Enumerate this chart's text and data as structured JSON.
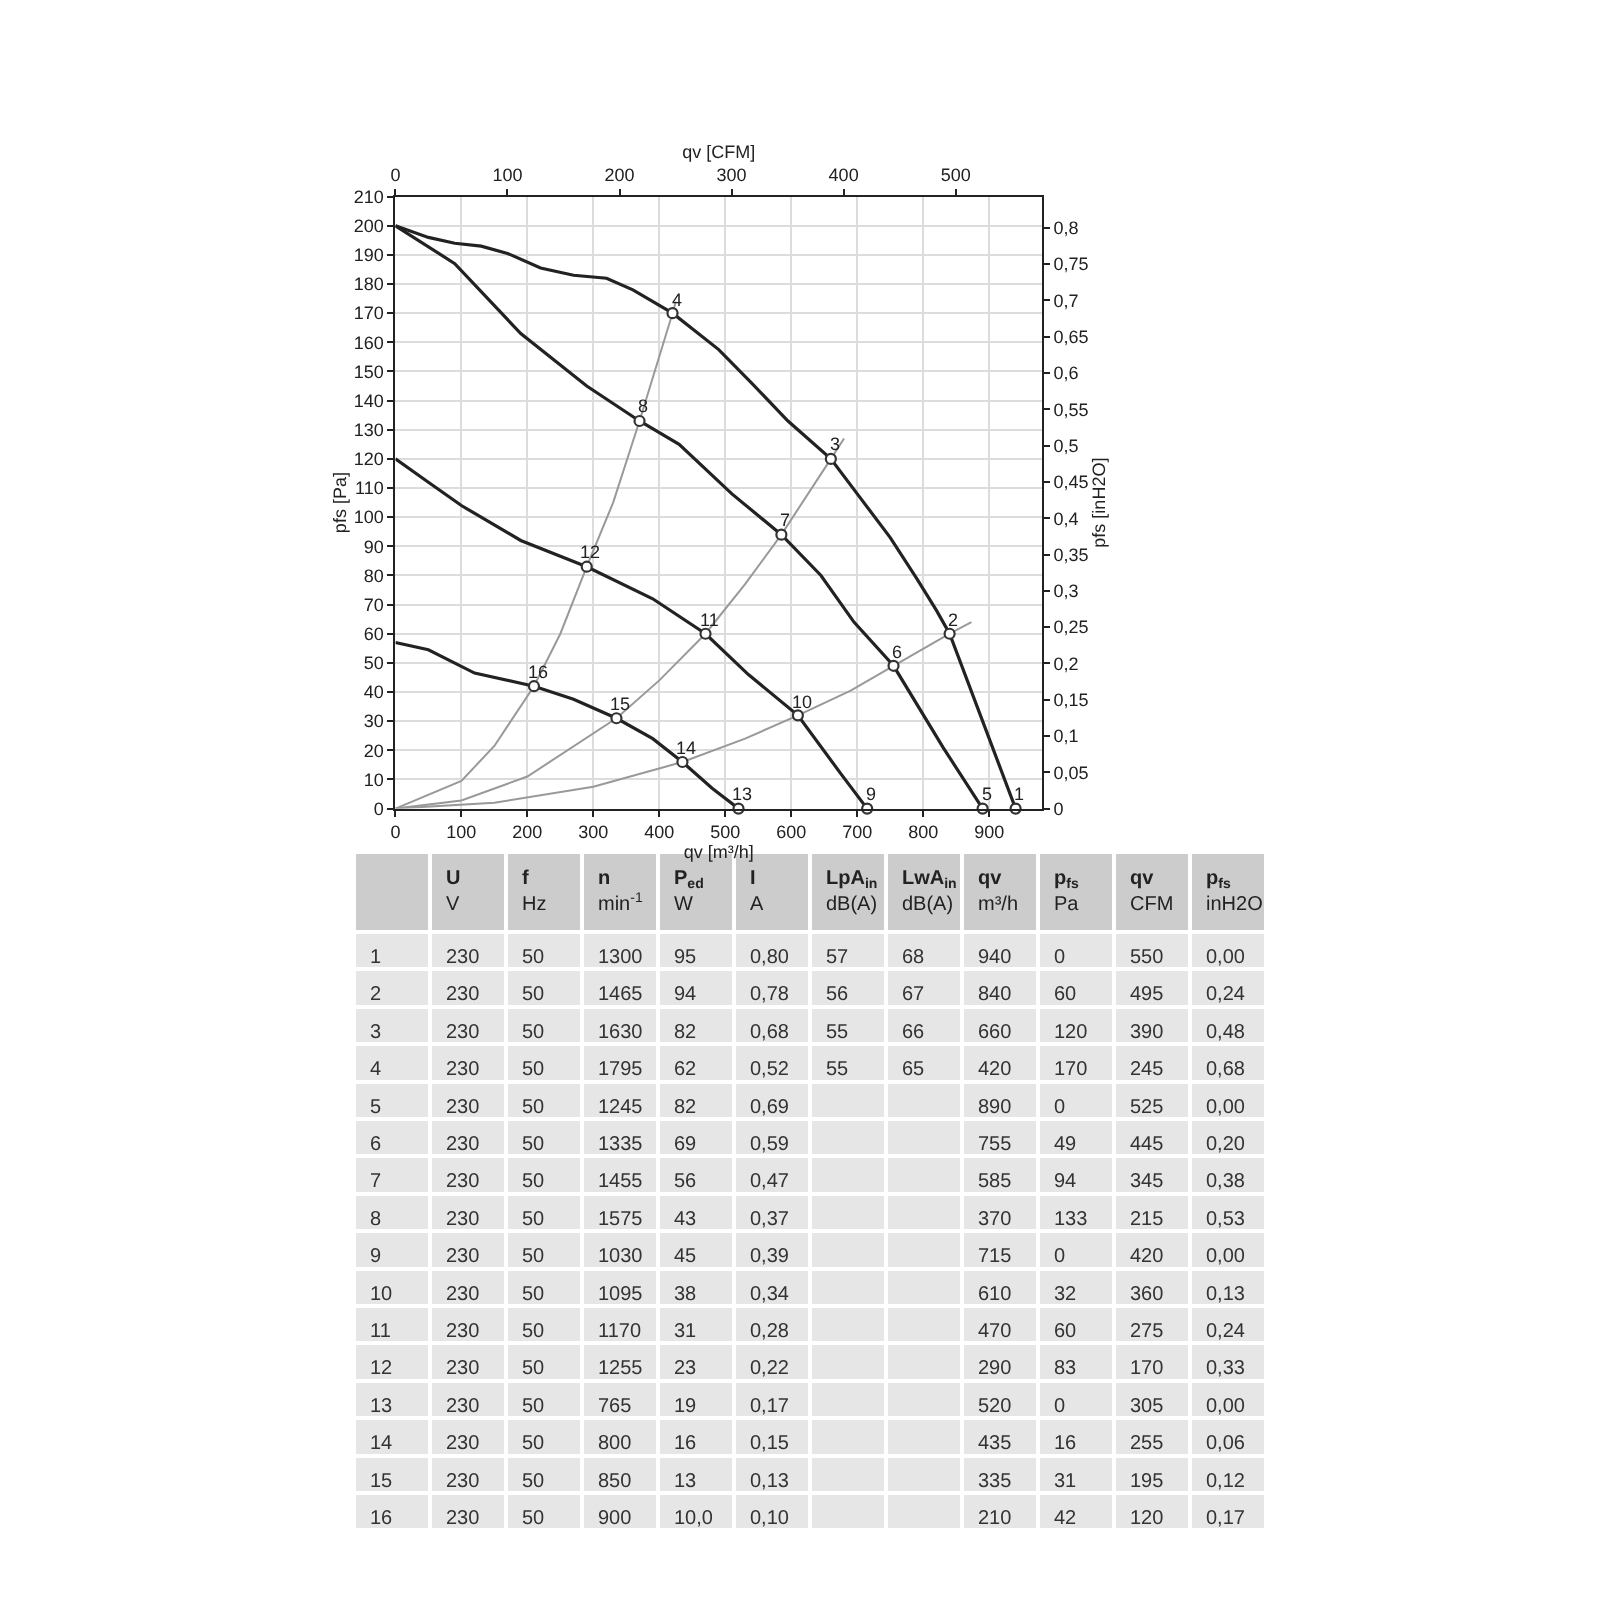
{
  "chart_data": [
    {
      "type": "line",
      "xlabel": "qv [m³/h]",
      "x2label": "qv [CFM]",
      "ylabel": "pfs [Pa]",
      "y2label": "pfs [inH2O]",
      "xlim": [
        0,
        980
      ],
      "xticks": [
        0,
        100,
        200,
        300,
        400,
        500,
        600,
        700,
        800,
        900
      ],
      "x2lim": [
        0,
        577
      ],
      "x2ticks": [
        0,
        100,
        200,
        300,
        400,
        500
      ],
      "ylim": [
        0,
        210
      ],
      "yticks": [
        0,
        10,
        20,
        30,
        40,
        50,
        60,
        70,
        80,
        90,
        100,
        110,
        120,
        130,
        140,
        150,
        160,
        170,
        180,
        190,
        200,
        210
      ],
      "y2lim": [
        0,
        0.843
      ],
      "y2ticks": [
        0,
        {
          "value": 0.05,
          "label": "0,05"
        },
        {
          "value": 0.1,
          "label": "0,1"
        },
        {
          "value": 0.15,
          "label": "0,15"
        },
        {
          "value": 0.2,
          "label": "0,2"
        },
        {
          "value": 0.25,
          "label": "0,25"
        },
        {
          "value": 0.3,
          "label": "0,3"
        },
        {
          "value": 0.35,
          "label": "0,35"
        },
        {
          "value": 0.4,
          "label": "0,4"
        },
        {
          "value": 0.45,
          "label": "0,45"
        },
        {
          "value": 0.5,
          "label": "0,5"
        },
        {
          "value": 0.55,
          "label": "0,55"
        },
        {
          "value": 0.6,
          "label": "0,6"
        },
        {
          "value": 0.65,
          "label": "0,65"
        },
        {
          "value": 0.7,
          "label": "0,7"
        },
        {
          "value": 0.75,
          "label": "0,75"
        },
        {
          "value": 0.8,
          "label": "0,8"
        }
      ],
      "grid": true,
      "series": [
        {
          "type": "line",
          "color": "#999999",
          "x": [
            0,
            100,
            150,
            210,
            250,
            290,
            330,
            370,
            420,
            425
          ],
          "values": [
            0,
            9.5,
            21.5,
            42,
            60,
            83,
            105,
            133,
            170,
            174
          ]
        },
        {
          "type": "line",
          "color": "#999999",
          "x": [
            0,
            100,
            200,
            335,
            400,
            470,
            530,
            585,
            660,
            680
          ],
          "values": [
            0,
            2.8,
            11,
            31,
            44,
            60,
            77,
            94,
            120,
            127
          ]
        },
        {
          "type": "line",
          "color": "#999999",
          "x": [
            0,
            150,
            300,
            435,
            530,
            610,
            690,
            755,
            840,
            873
          ],
          "values": [
            0,
            2,
            7.5,
            16,
            24,
            32,
            40.5,
            49,
            60,
            64
          ]
        },
        {
          "type": "line",
          "color": "#222222",
          "x": [
            0,
            50,
            90,
            130,
            170,
            220,
            270,
            320,
            360,
            420,
            490,
            540,
            595,
            660,
            700,
            750,
            790,
            820,
            840,
            890,
            940
          ],
          "values": [
            200,
            196,
            194,
            193,
            190.5,
            185.5,
            183,
            182,
            178,
            170,
            157.5,
            146,
            133,
            120,
            108,
            93,
            79,
            68,
            60,
            30,
            0
          ]
        },
        {
          "type": "line",
          "color": "#222222",
          "x": [
            0,
            90,
            190,
            290,
            370,
            430,
            510,
            585,
            645,
            695,
            755,
            830,
            890
          ],
          "values": [
            200,
            187,
            163,
            145,
            133,
            125,
            108,
            94,
            80,
            64,
            49,
            21,
            0
          ]
        },
        {
          "type": "line",
          "color": "#222222",
          "x": [
            0,
            50,
            100,
            190,
            290,
            390,
            470,
            535,
            610,
            675,
            715
          ],
          "values": [
            120,
            112,
            104,
            92,
            83,
            72,
            60,
            46,
            32,
            12,
            0
          ]
        },
        {
          "type": "line",
          "color": "#222222",
          "x": [
            0,
            50,
            120,
            210,
            270,
            335,
            390,
            435,
            480,
            520
          ],
          "values": [
            57,
            54.5,
            46.5,
            42,
            37.5,
            31,
            24,
            16,
            7,
            0
          ]
        },
        {
          "type": "scatter",
          "marker": "circle",
          "color": "#333333",
          "x": [
            940,
            840,
            660,
            420,
            890,
            755,
            585,
            370,
            715,
            610,
            470,
            290,
            520,
            435,
            335,
            210
          ],
          "values": [
            0,
            60,
            120,
            170,
            0,
            49,
            94,
            133,
            0,
            32,
            60,
            83,
            0,
            16,
            31,
            42
          ]
        }
      ],
      "annotations": [
        {
          "text": "1",
          "x": 940,
          "y": 0
        },
        {
          "text": "2",
          "x": 840,
          "y": 60
        },
        {
          "text": "3",
          "x": 660,
          "y": 120
        },
        {
          "text": "4",
          "x": 420,
          "y": 170
        },
        {
          "text": "5",
          "x": 890,
          "y": 0
        },
        {
          "text": "6",
          "x": 755,
          "y": 49
        },
        {
          "text": "7",
          "x": 585,
          "y": 94
        },
        {
          "text": "8",
          "x": 370,
          "y": 133
        },
        {
          "text": "9",
          "x": 715,
          "y": 0
        },
        {
          "text": "10",
          "x": 610,
          "y": 32
        },
        {
          "text": "11",
          "x": 470,
          "y": 60
        },
        {
          "text": "12",
          "x": 290,
          "y": 83
        },
        {
          "text": "13",
          "x": 520,
          "y": 0
        },
        {
          "text": "14",
          "x": 435,
          "y": 16
        },
        {
          "text": "15",
          "x": 335,
          "y": 31
        },
        {
          "text": "16",
          "x": 210,
          "y": 42
        }
      ]
    },
    {
      "type": "heatmap",
      "categories": [
        "U\nV",
        "f\nHz",
        "n\nmin$^{-1}$",
        "P$_{ed}$\nW",
        "I\nA",
        "LpA$_{in}$\ndB(A)",
        "LwA$_{in}$\ndB(A)",
        "qv\nm³/h",
        "p$_{fs}$\nPa",
        "qv\nCFM",
        "p$_{fs}$\ninH2O"
      ],
      "y_categories": [
        "1",
        "2",
        "3",
        "4",
        "5",
        "6",
        "7",
        "8",
        "9",
        "10",
        "11",
        "12",
        "13",
        "14",
        "15",
        "16"
      ],
      "cells": [
        [
          230,
          50,
          1300,
          95,
          0.8,
          57,
          68,
          940,
          0,
          550,
          0.0
        ],
        [
          230,
          50,
          1465,
          94,
          0.78,
          56,
          67,
          840,
          60,
          495,
          0.24
        ],
        [
          230,
          50,
          1630,
          82,
          0.68,
          55,
          66,
          660,
          120,
          390,
          0.48
        ],
        [
          230,
          50,
          1795,
          62,
          0.52,
          55,
          65,
          420,
          170,
          245,
          0.68
        ],
        [
          230,
          50,
          1245,
          82,
          0.69,
          null,
          null,
          890,
          0,
          525,
          0.0
        ],
        [
          230,
          50,
          1335,
          69,
          0.59,
          null,
          null,
          755,
          49,
          445,
          0.2
        ],
        [
          230,
          50,
          1455,
          56,
          0.47,
          null,
          null,
          585,
          94,
          345,
          0.38
        ],
        [
          230,
          50,
          1575,
          43,
          0.37,
          null,
          null,
          370,
          133,
          215,
          0.53
        ],
        [
          230,
          50,
          1030,
          45,
          0.39,
          null,
          null,
          715,
          0,
          420,
          0.0
        ],
        [
          230,
          50,
          1095,
          38,
          0.34,
          null,
          null,
          610,
          32,
          360,
          0.13
        ],
        [
          230,
          50,
          1170,
          31,
          0.28,
          null,
          null,
          470,
          60,
          275,
          0.24
        ],
        [
          230,
          50,
          1255,
          23,
          0.22,
          null,
          null,
          290,
          83,
          170,
          0.33
        ],
        [
          230,
          50,
          765,
          19,
          0.17,
          null,
          null,
          520,
          0,
          305,
          0.0
        ],
        [
          230,
          50,
          800,
          16,
          0.15,
          null,
          null,
          435,
          16,
          255,
          0.06
        ],
        [
          230,
          50,
          850,
          13,
          0.13,
          null,
          null,
          335,
          31,
          195,
          0.12
        ],
        [
          230,
          50,
          900,
          10.0,
          0.1,
          null,
          null,
          210,
          42,
          120,
          0.17
        ]
      ],
      "cell_labels": [
        [
          "230",
          "50",
          "1300",
          "95",
          "0,80",
          "57",
          "68",
          "940",
          "0",
          "550",
          "0,00"
        ],
        [
          "230",
          "50",
          "1465",
          "94",
          "0,78",
          "56",
          "67",
          "840",
          "60",
          "495",
          "0,24"
        ],
        [
          "230",
          "50",
          "1630",
          "82",
          "0,68",
          "55",
          "66",
          "660",
          "120",
          "390",
          "0,48"
        ],
        [
          "230",
          "50",
          "1795",
          "62",
          "0,52",
          "55",
          "65",
          "420",
          "170",
          "245",
          "0,68"
        ],
        [
          "230",
          "50",
          "1245",
          "82",
          "0,69",
          null,
          null,
          "890",
          "0",
          "525",
          "0,00"
        ],
        [
          "230",
          "50",
          "1335",
          "69",
          "0,59",
          null,
          null,
          "755",
          "49",
          "445",
          "0,20"
        ],
        [
          "230",
          "50",
          "1455",
          "56",
          "0,47",
          null,
          null,
          "585",
          "94",
          "345",
          "0,38"
        ],
        [
          "230",
          "50",
          "1575",
          "43",
          "0,37",
          null,
          null,
          "370",
          "133",
          "215",
          "0,53"
        ],
        [
          "230",
          "50",
          "1030",
          "45",
          "0,39",
          null,
          null,
          "715",
          "0",
          "420",
          "0,00"
        ],
        [
          "230",
          "50",
          "1095",
          "38",
          "0,34",
          null,
          null,
          "610",
          "32",
          "360",
          "0,13"
        ],
        [
          "230",
          "50",
          "1170",
          "31",
          "0,28",
          null,
          null,
          "470",
          "60",
          "275",
          "0,24"
        ],
        [
          "230",
          "50",
          "1255",
          "23",
          "0,22",
          null,
          null,
          "290",
          "83",
          "170",
          "0,33"
        ],
        [
          "230",
          "50",
          "765",
          "19",
          "0,17",
          null,
          null,
          "520",
          "0",
          "305",
          "0,00"
        ],
        [
          "230",
          "50",
          "800",
          "16",
          "0,15",
          null,
          null,
          "435",
          "16",
          "255",
          "0,06"
        ],
        [
          "230",
          "50",
          "850",
          "13",
          "0,13",
          null,
          null,
          "335",
          "31",
          "195",
          "0,12"
        ],
        [
          "230",
          "50",
          "900",
          "10,0",
          "0,10",
          null,
          null,
          "210",
          "42",
          "120",
          "0,17"
        ]
      ]
    }
  ]
}
